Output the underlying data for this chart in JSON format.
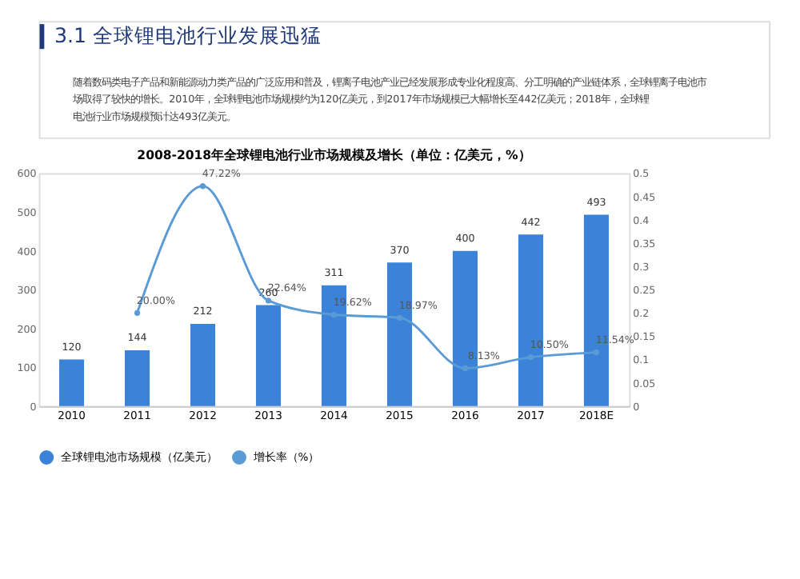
{
  "chart_data": {
    "type": "bar",
    "title": "2008-2018年全球锂电池行业市场规模及增长（单位：亿美元，%）",
    "annotations": [
      "3.1  全球锂电池行业发展迅猛",
      "随着数码类电子产品和新能源动力类产品的广泛应用和普及，锂离子电池产业已经发展形成专业化程度高、分工明确的产业链体系，全球锂离子电池市场取得了较快的增长。2010年，全球锂电池市场规模约为120亿美元，到2017年市场规模已大幅增长至442亿美元；2018年，全球锂电池行业市场规模预计达493亿美元。"
    ],
    "categories": [
      "2010",
      "2011",
      "2012",
      "2013",
      "2014",
      "2015",
      "2016",
      "2017",
      "2018E"
    ],
    "series": [
      {
        "name": "全球锂电池市场规模（亿美元）",
        "type": "bar",
        "color": "#3b82d9",
        "values": [
          120,
          144,
          212,
          260,
          311,
          370,
          400,
          442,
          493
        ],
        "value_labels": [
          "120",
          "144",
          "212",
          "260",
          "311",
          "370",
          "400",
          "442",
          "493"
        ]
      },
      {
        "name": "增长率（%）",
        "type": "line",
        "axis": "y2",
        "color": "#5b9bd5",
        "values": [
          null,
          0.2,
          0.4722,
          0.2264,
          0.1962,
          0.1897,
          0.0813,
          0.105,
          0.1154
        ],
        "value_labels": [
          null,
          "20.00%",
          "47.22%",
          "22.64%",
          "19.62%",
          "18.97%",
          "8.13%",
          "10.50%",
          "11.54%"
        ]
      }
    ],
    "ylim": [
      0,
      600
    ],
    "yticks": [
      0,
      100,
      200,
      300,
      400,
      500,
      600
    ],
    "y2lim": [
      0,
      0.5
    ],
    "y2ticks": [
      0,
      0.05,
      0.1,
      0.15,
      0.2,
      0.25,
      0.3,
      0.35,
      0.4,
      0.45,
      0.5
    ],
    "marker": "circle",
    "grid": false,
    "legend": "bottom"
  }
}
